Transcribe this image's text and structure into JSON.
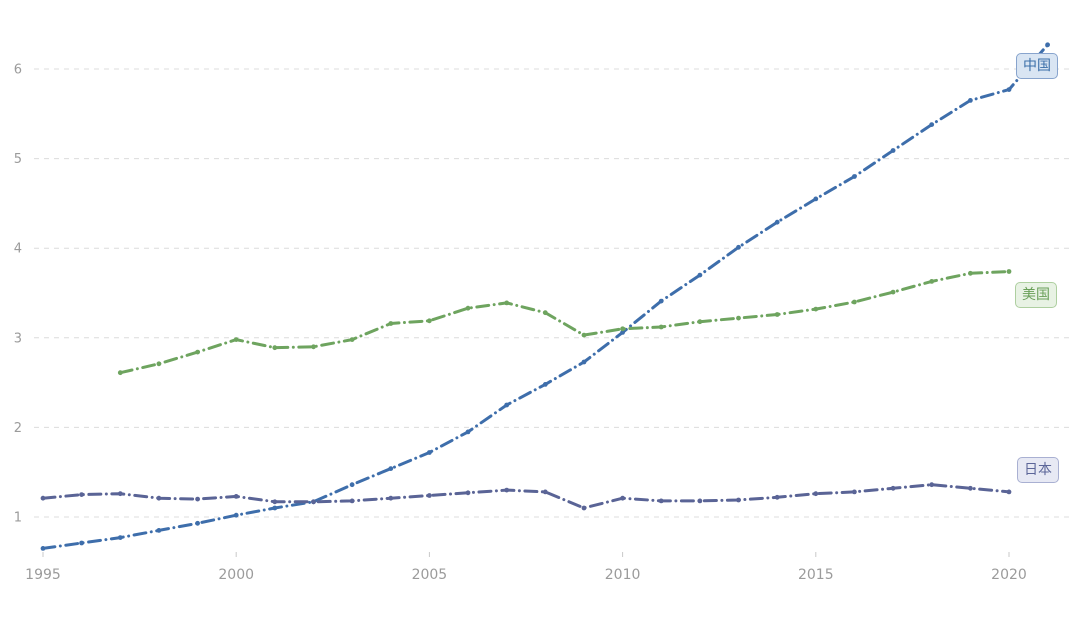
{
  "chart_data": {
    "type": "line",
    "title": "",
    "xlabel": "",
    "ylabel": "",
    "x_axis": {
      "tick_years": [
        1995,
        2000,
        2005,
        2010,
        2015,
        2020
      ],
      "tick_labels": [
        "1995",
        "2000",
        "2005",
        "2010",
        "2015",
        "2020"
      ],
      "range": [
        1995,
        2021
      ]
    },
    "y_axis": {
      "tick_values": [
        1,
        2,
        3,
        4,
        5,
        6
      ],
      "tick_labels": [
        "1",
        "2",
        "3",
        "4",
        "5",
        "6"
      ],
      "range": [
        0.6,
        6.65
      ],
      "grid": "dashed horizontal gridlines"
    },
    "legend_position": "badges at right end of each line",
    "line_style": "dash-dot with round point markers at each year",
    "colors": {
      "grid": "#dcdcdc",
      "tick_mark": "#c9c9c9",
      "axis_text": "#9b9b9b"
    },
    "series": [
      {
        "name": "中国",
        "color": "#3e6eab",
        "badge_bg": "#d9e5f3",
        "badge_border": "#88a4cd",
        "badge_text_color": "#3a6ea8",
        "start_year": 1995,
        "values": [
          0.65,
          0.71,
          0.77,
          0.85,
          0.93,
          1.02,
          1.1,
          1.17,
          1.36,
          1.54,
          1.72,
          1.95,
          2.25,
          2.48,
          2.73,
          3.06,
          3.41,
          3.7,
          4.01,
          4.29,
          4.55,
          4.8,
          5.09,
          5.38,
          5.65,
          5.77,
          6.27
        ]
      },
      {
        "name": "美国",
        "color": "#6ea45f",
        "badge_bg": "#e8f2e4",
        "badge_border": "#aecfa0",
        "badge_text_color": "#699f58",
        "start_year": 1997,
        "values": [
          2.61,
          2.71,
          2.84,
          2.98,
          2.89,
          2.9,
          2.98,
          3.16,
          3.19,
          3.33,
          3.39,
          3.28,
          3.03,
          3.1,
          3.12,
          3.18,
          3.22,
          3.26,
          3.32,
          3.4,
          3.51,
          3.63,
          3.72,
          3.74
        ]
      },
      {
        "name": "日本",
        "color": "#5a6496",
        "badge_bg": "#e7e9f4",
        "badge_border": "#a9b0d2",
        "badge_text_color": "#5c6699",
        "start_year": 1995,
        "values": [
          1.21,
          1.25,
          1.26,
          1.21,
          1.2,
          1.23,
          1.17,
          1.17,
          1.18,
          1.21,
          1.24,
          1.27,
          1.3,
          1.28,
          1.1,
          1.21,
          1.18,
          1.18,
          1.19,
          1.22,
          1.26,
          1.28,
          1.32,
          1.36,
          1.32,
          1.28
        ]
      }
    ]
  }
}
